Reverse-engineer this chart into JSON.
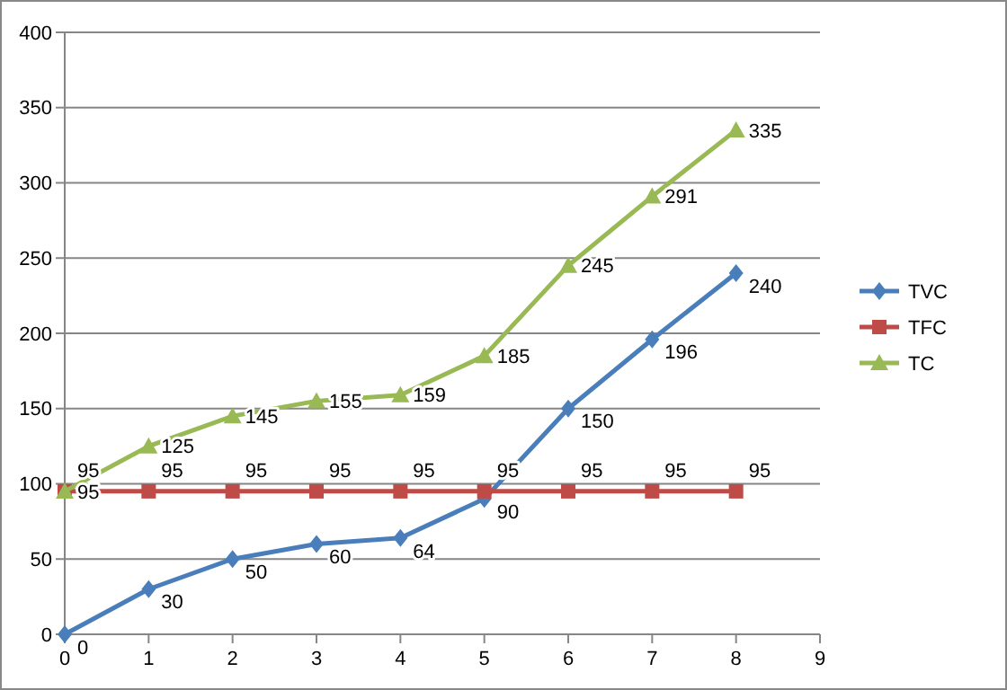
{
  "chart_data": {
    "type": "line",
    "x": [
      0,
      1,
      2,
      3,
      4,
      5,
      6,
      7,
      8
    ],
    "series": [
      {
        "name": "TVC",
        "color": "#4a7ebb",
        "marker": "diamond",
        "values": [
          0,
          30,
          50,
          60,
          64,
          90,
          150,
          196,
          240
        ]
      },
      {
        "name": "TFC",
        "color": "#be4b48",
        "marker": "square",
        "values": [
          95,
          95,
          95,
          95,
          95,
          95,
          95,
          95,
          95
        ]
      },
      {
        "name": "TC",
        "color": "#98b954",
        "marker": "triangle",
        "values": [
          95,
          125,
          145,
          155,
          159,
          185,
          245,
          291,
          335
        ]
      }
    ],
    "xlim": [
      0,
      9
    ],
    "xticks": [
      0,
      1,
      2,
      3,
      4,
      5,
      6,
      7,
      8,
      9
    ],
    "ylim": [
      0,
      400
    ],
    "yticks": [
      0,
      50,
      100,
      150,
      200,
      250,
      300,
      350,
      400
    ],
    "grid": "y",
    "legend": "right",
    "data_labels": true,
    "line_style": "solid"
  }
}
